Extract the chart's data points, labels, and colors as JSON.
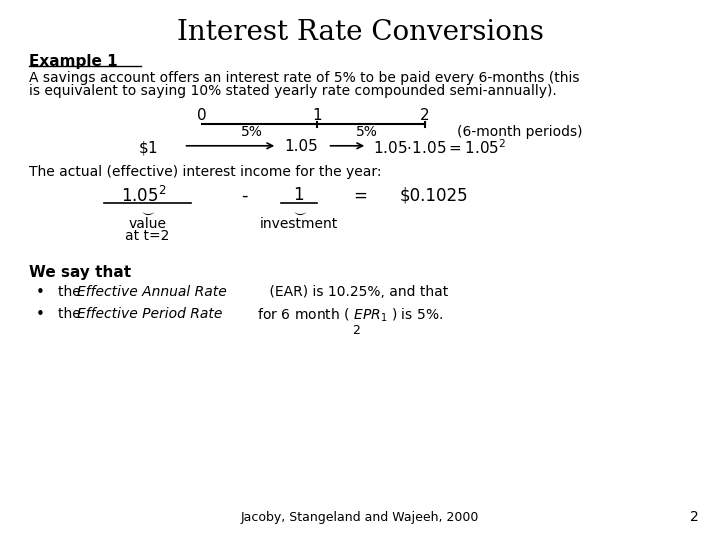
{
  "title": "Interest Rate Conversions",
  "bg_color": "#ffffff",
  "text_color": "#000000",
  "footer": "Jacoby, Stangeland and Wajeeh, 2000",
  "page_number": "2"
}
